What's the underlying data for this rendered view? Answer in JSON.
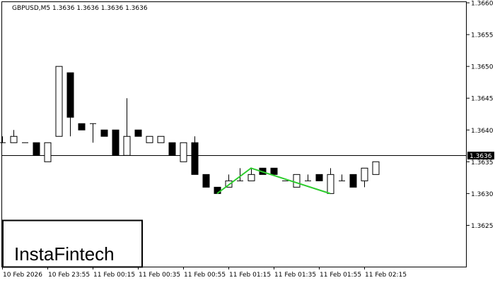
{
  "header": {
    "symbol_label": "GBPUSD,M5  1.3636 1.3636 1.3636 1.3636"
  },
  "logo": {
    "text": "InstaFintech"
  },
  "current_price_label": "1.3636",
  "chart_data": {
    "type": "candlestick",
    "symbol": "GBPUSD",
    "timeframe": "M5",
    "ylim": [
      1.362,
      1.366
    ],
    "y_ticks": [
      "1.3660",
      "1.3655",
      "1.3650",
      "1.3645",
      "1.3640",
      "1.3635",
      "1.3630",
      "1.3625"
    ],
    "x_ticks": [
      "10 Feb 2026",
      "10 Feb 23:55",
      "11 Feb 00:15",
      "11 Feb 00:35",
      "11 Feb 00:55",
      "11 Feb 01:15",
      "11 Feb 01:35",
      "11 Feb 01:55",
      "11 Feb 02:15"
    ],
    "current_price": 1.3636,
    "grid": false,
    "candles": [
      {
        "o": 1.3638,
        "h": 1.3639,
        "l": 1.3638,
        "c": 1.3638
      },
      {
        "o": 1.3638,
        "h": 1.364,
        "l": 1.3638,
        "c": 1.3639
      },
      {
        "o": 1.3638,
        "h": 1.3638,
        "l": 1.3638,
        "c": 1.3638
      },
      {
        "o": 1.3638,
        "h": 1.3638,
        "l": 1.3636,
        "c": 1.3636
      },
      {
        "o": 1.3635,
        "h": 1.3638,
        "l": 1.3635,
        "c": 1.3638
      },
      {
        "o": 1.3639,
        "h": 1.365,
        "l": 1.3639,
        "c": 1.365
      },
      {
        "o": 1.3649,
        "h": 1.3649,
        "l": 1.3639,
        "c": 1.3642
      },
      {
        "o": 1.3641,
        "h": 1.3641,
        "l": 1.364,
        "c": 1.364
      },
      {
        "o": 1.3641,
        "h": 1.3641,
        "l": 1.3638,
        "c": 1.3641
      },
      {
        "o": 1.364,
        "h": 1.364,
        "l": 1.3639,
        "c": 1.3639
      },
      {
        "o": 1.364,
        "h": 1.364,
        "l": 1.3636,
        "c": 1.3636
      },
      {
        "o": 1.3636,
        "h": 1.3645,
        "l": 1.3636,
        "c": 1.3639
      },
      {
        "o": 1.364,
        "h": 1.364,
        "l": 1.3639,
        "c": 1.3639
      },
      {
        "o": 1.3638,
        "h": 1.3639,
        "l": 1.3638,
        "c": 1.3639
      },
      {
        "o": 1.3638,
        "h": 1.3639,
        "l": 1.3638,
        "c": 1.3639
      },
      {
        "o": 1.3638,
        "h": 1.3638,
        "l": 1.3636,
        "c": 1.3636
      },
      {
        "o": 1.3635,
        "h": 1.3638,
        "l": 1.3635,
        "c": 1.3638
      },
      {
        "o": 1.3638,
        "h": 1.3639,
        "l": 1.3633,
        "c": 1.3633
      },
      {
        "o": 1.3633,
        "h": 1.3633,
        "l": 1.3631,
        "c": 1.3631
      },
      {
        "o": 1.3631,
        "h": 1.3631,
        "l": 1.363,
        "c": 1.363
      },
      {
        "o": 1.3631,
        "h": 1.3633,
        "l": 1.3631,
        "c": 1.3632
      },
      {
        "o": 1.3632,
        "h": 1.3634,
        "l": 1.3632,
        "c": 1.3632
      },
      {
        "o": 1.3632,
        "h": 1.3634,
        "l": 1.3632,
        "c": 1.3633
      },
      {
        "o": 1.3634,
        "h": 1.3634,
        "l": 1.3633,
        "c": 1.3633
      },
      {
        "o": 1.3634,
        "h": 1.3634,
        "l": 1.3633,
        "c": 1.3633
      },
      {
        "o": 1.3632,
        "h": 1.3632,
        "l": 1.3632,
        "c": 1.3632
      },
      {
        "o": 1.3631,
        "h": 1.3633,
        "l": 1.3631,
        "c": 1.3633
      },
      {
        "o": 1.3632,
        "h": 1.3633,
        "l": 1.3632,
        "c": 1.3632
      },
      {
        "o": 1.3633,
        "h": 1.3633,
        "l": 1.3632,
        "c": 1.3632
      },
      {
        "o": 1.363,
        "h": 1.3634,
        "l": 1.363,
        "c": 1.3633
      },
      {
        "o": 1.3632,
        "h": 1.3633,
        "l": 1.3632,
        "c": 1.3632
      },
      {
        "o": 1.3633,
        "h": 1.3633,
        "l": 1.3631,
        "c": 1.3631
      },
      {
        "o": 1.3632,
        "h": 1.3634,
        "l": 1.3631,
        "c": 1.3634
      },
      {
        "o": 1.3633,
        "h": 1.3635,
        "l": 1.3633,
        "c": 1.3635
      }
    ],
    "pattern_line": {
      "color": "#2ecc2e",
      "points": [
        {
          "bar": 19,
          "price": 1.363
        },
        {
          "bar": 22,
          "price": 1.3634
        },
        {
          "bar": 29,
          "price": 1.363
        }
      ]
    }
  }
}
